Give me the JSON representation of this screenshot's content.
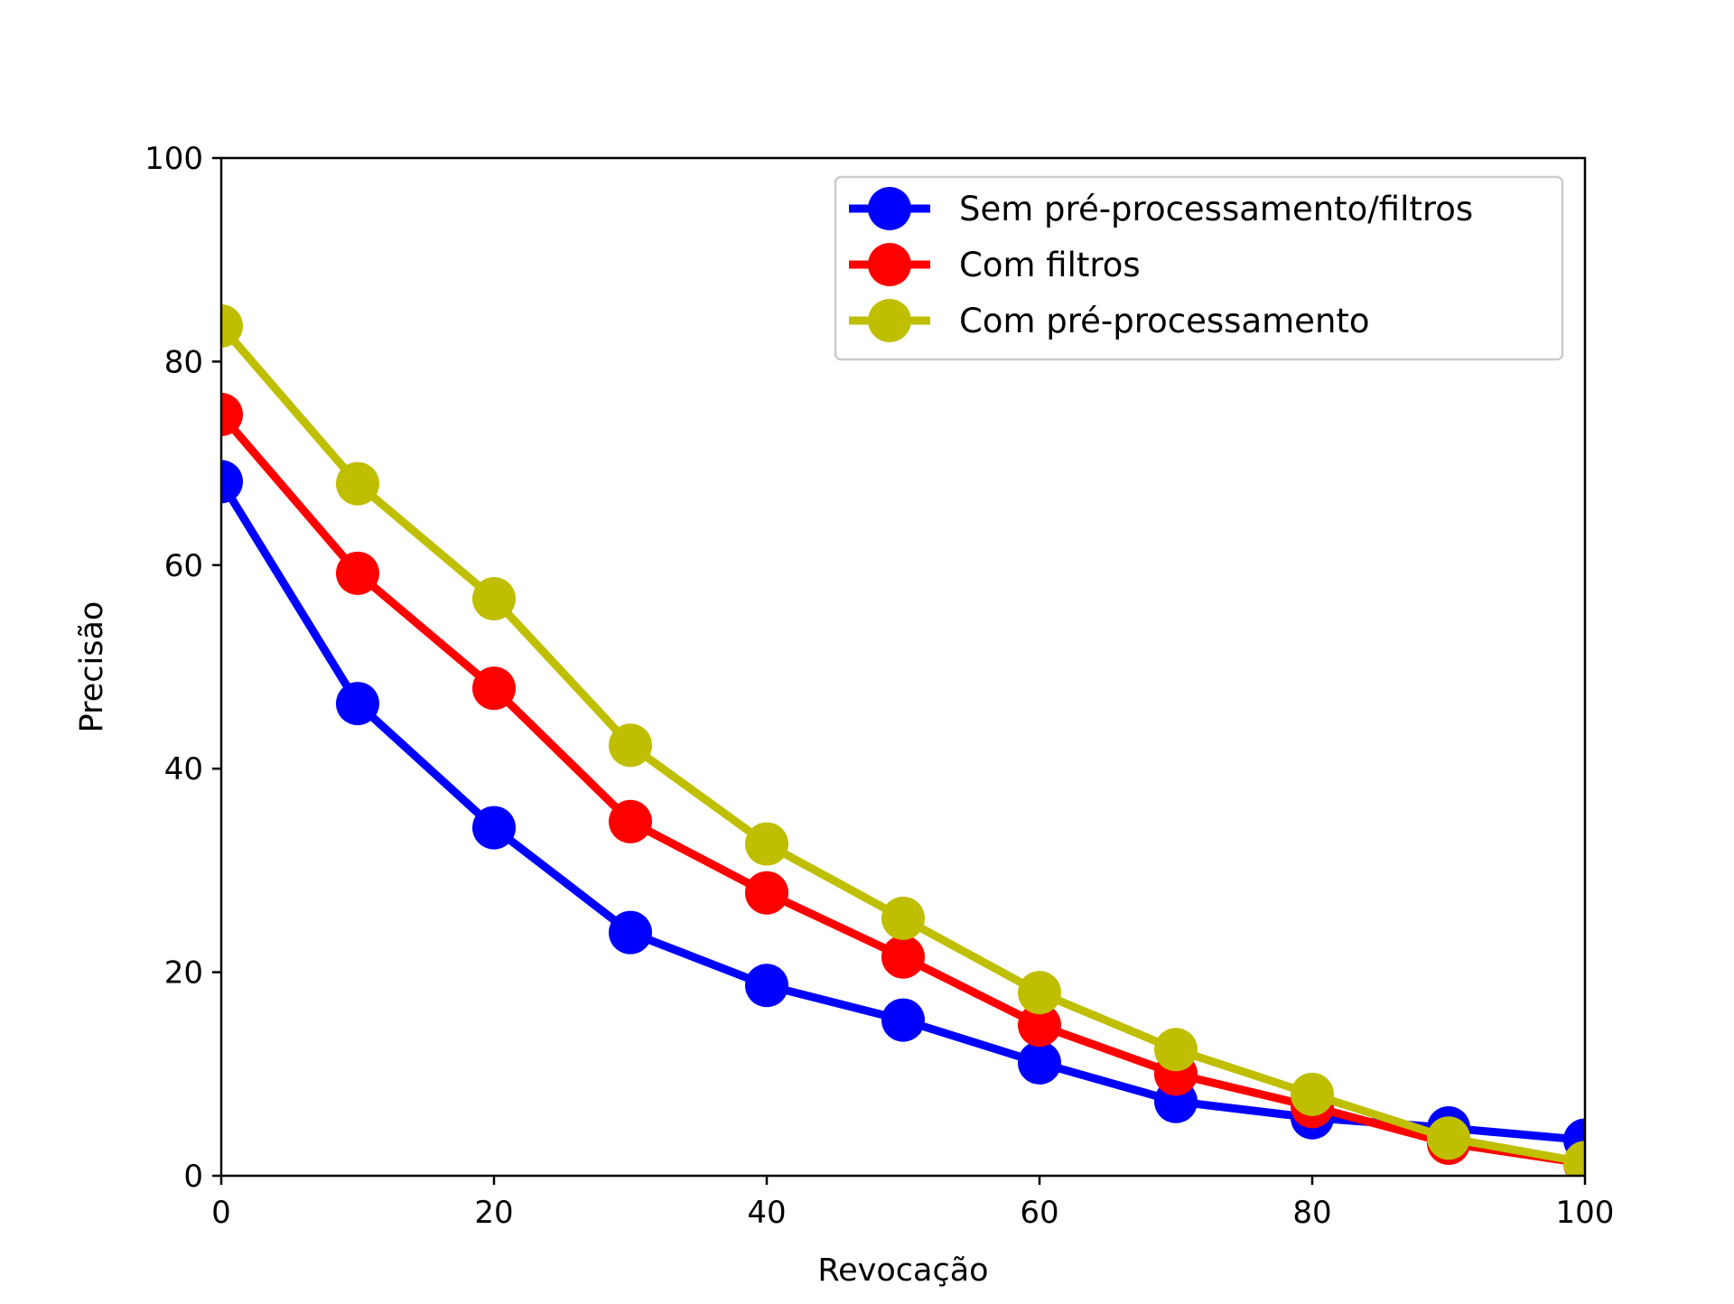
{
  "chart_data": {
    "type": "line",
    "title": "",
    "xlabel": "Revocação",
    "ylabel": "Precisão",
    "xlim": [
      0,
      100
    ],
    "ylim": [
      0,
      100
    ],
    "xticks": [
      0,
      20,
      40,
      60,
      80,
      100
    ],
    "yticks": [
      0,
      20,
      40,
      60,
      80,
      100
    ],
    "grid": false,
    "legend_position": "top-right",
    "x": [
      0,
      10,
      20,
      30,
      40,
      50,
      60,
      70,
      80,
      90,
      100
    ],
    "series": [
      {
        "name": "Sem pré-processamento/filtros",
        "color": "#0000ff",
        "values": [
          68.2,
          46.4,
          34.2,
          23.9,
          18.7,
          15.3,
          11.1,
          7.3,
          5.7,
          4.7,
          3.5
        ]
      },
      {
        "name": "Com filtros",
        "color": "#ff0000",
        "values": [
          74.8,
          59.2,
          47.9,
          34.8,
          27.8,
          21.5,
          14.8,
          10.0,
          6.8,
          3.2,
          1.2
        ]
      },
      {
        "name": "Com pré-processamento",
        "color": "#bfbf00",
        "values": [
          83.5,
          68.0,
          56.7,
          42.3,
          32.6,
          25.3,
          18.0,
          12.4,
          8.0,
          3.7,
          1.3
        ]
      }
    ]
  }
}
